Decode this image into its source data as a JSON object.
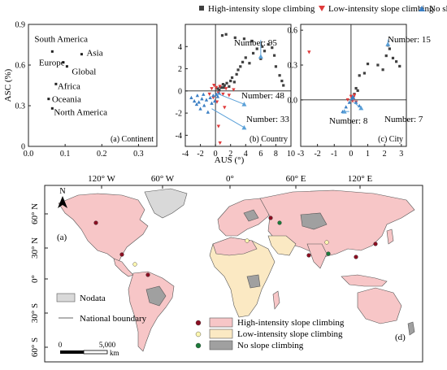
{
  "legend": {
    "high": "High-intensity slope climbing",
    "low": "Low-intensity slope climbing",
    "none": "No slope climbing"
  },
  "colors": {
    "high_marker": "#404040",
    "low_marker": "#e03a3a",
    "none_marker": "#3b7fc4",
    "arrow": "#5aa0d8",
    "map_high": "#f7c6c7",
    "map_low": "#fbe9c3",
    "map_none": "#a0a0a0",
    "map_nodata": "#d9d9d9",
    "ocean": "#ffffff",
    "dot_high": "#8b0f22",
    "dot_low": "#fff7b0",
    "dot_none": "#1c7a3a"
  },
  "y_label_shared": "ASC (%)",
  "x_label_shared": "AUS (°)",
  "chart_data": [
    {
      "type": "scatter",
      "panel_label": "(a) Continent",
      "xlim": [
        0,
        0.35
      ],
      "ylim": [
        0,
        0.9
      ],
      "x_ticks": [
        "0.0",
        "0.1",
        "0.2",
        "0.3"
      ],
      "x_tick_values": [
        0,
        0.1,
        0.2,
        0.3
      ],
      "y_ticks": [
        "0",
        "0.3",
        "0.6",
        "0.9"
      ],
      "y_tick_values": [
        0,
        0.3,
        0.6,
        0.9
      ],
      "points": [
        {
          "label": "South America",
          "x": 0.065,
          "y": 0.7
        },
        {
          "label": "Asia",
          "x": 0.145,
          "y": 0.68
        },
        {
          "label": "Europe",
          "x": 0.095,
          "y": 0.62
        },
        {
          "label": "Global",
          "x": 0.105,
          "y": 0.59
        },
        {
          "label": "Africa",
          "x": 0.075,
          "y": 0.46
        },
        {
          "label": "Oceania",
          "x": 0.055,
          "y": 0.35
        },
        {
          "label": "North America",
          "x": 0.065,
          "y": 0.28
        }
      ]
    },
    {
      "type": "scatter",
      "panel_label": "(b) Country",
      "xlim": [
        -4,
        10
      ],
      "ylim": [
        -5,
        6
      ],
      "x_ticks": [
        "-4",
        "-2",
        "0",
        "2",
        "4",
        "6",
        "8",
        "10"
      ],
      "x_tick_values": [
        -4,
        -2,
        0,
        2,
        4,
        6,
        8,
        10
      ],
      "y_ticks": [
        "-4",
        "-2",
        "0",
        "2",
        "4"
      ],
      "y_tick_values": [
        -4,
        -2,
        0,
        2,
        4
      ],
      "series": [
        {
          "name": "High-intensity slope climbing",
          "x": [
            0.3,
            0.6,
            0.8,
            1.0,
            1.2,
            1.5,
            1.8,
            2.0,
            2.2,
            2.5,
            2.8,
            3.0,
            3.3,
            3.6,
            4.0,
            4.5,
            5.0,
            5.5,
            6.0,
            6.5,
            7.0,
            7.5,
            8.0,
            8.5,
            9.0,
            0.9,
            1.4,
            2.6,
            3.8,
            4.8,
            6.2,
            7.8,
            8.8,
            0.5,
            1.1
          ],
          "y": [
            0.2,
            0.4,
            0.3,
            0.6,
            0.5,
            0.7,
            0.4,
            0.9,
            1.2,
            0.8,
            1.5,
            1.9,
            2.2,
            2.6,
            3.0,
            2.5,
            3.4,
            3.8,
            2.9,
            3.6,
            4.2,
            3.9,
            2.2,
            1.4,
            0.5,
            5.0,
            5.1,
            4.8,
            4.7,
            4.5,
            4.0,
            3.2,
            0.9,
            0.1,
            0.3
          ]
        },
        {
          "name": "Low-intensity slope climbing",
          "x": [
            -0.8,
            -0.5,
            -0.3,
            0.1,
            0.2,
            0.4,
            0.6,
            1.0,
            1.4,
            1.8,
            2.4,
            0.4,
            0.6,
            1.2,
            -0.2
          ],
          "y": [
            -0.3,
            0.2,
            -0.6,
            0.3,
            -1.0,
            -0.2,
            0.4,
            -0.3,
            0.2,
            -0.4,
            0.1,
            -3.2,
            -4.7,
            -1.5,
            0.5
          ]
        },
        {
          "name": "No slope climbing",
          "x": [
            -3.2,
            -2.8,
            -2.5,
            -2.2,
            -2.0,
            -1.8,
            -1.5,
            -1.2,
            -1.0,
            -0.7,
            -0.5,
            -0.3,
            -0.1,
            0.1,
            0.3,
            0.5,
            -1.6,
            -2.4,
            6.0
          ],
          "y": [
            -0.6,
            -0.9,
            -1.2,
            -1.0,
            -1.6,
            -0.7,
            -1.3,
            -0.8,
            -1.9,
            -0.6,
            -1.1,
            -0.4,
            -0.9,
            -0.3,
            -0.5,
            -0.2,
            -0.3,
            -0.4,
            3.1
          ]
        }
      ],
      "annotations": [
        {
          "text": "Number: 95",
          "x": 6.0,
          "y": 3.1
        },
        {
          "text": "Number: 48",
          "x": 3.8,
          "y": -1.2
        },
        {
          "text": "Number: 33",
          "x": 3.8,
          "y": -3.3
        }
      ]
    },
    {
      "type": "scatter",
      "panel_label": "(c) City",
      "xlim": [
        -3,
        3.3
      ],
      "ylim": [
        -0.4,
        0.65
      ],
      "x_ticks": [
        "-3",
        "-2",
        "-1",
        "0",
        "1",
        "2",
        "3"
      ],
      "x_tick_values": [
        -3,
        -2,
        -1,
        0,
        1,
        2,
        3
      ],
      "y_ticks": [
        "0.0",
        "0.3",
        "0.6"
      ],
      "y_tick_values": [
        0,
        0.3,
        0.6
      ],
      "series": [
        {
          "name": "High-intensity slope climbing",
          "x": [
            0.3,
            0.5,
            0.8,
            1.0,
            1.6,
            1.9,
            2.1,
            2.3,
            2.5,
            2.7,
            2.9,
            2.2,
            0.1,
            0.2,
            0.4
          ],
          "y": [
            0.1,
            0.21,
            0.23,
            0.31,
            0.3,
            0.26,
            0.38,
            0.44,
            0.36,
            0.33,
            0.29,
            0.47,
            0.02,
            0.05,
            0.08
          ]
        },
        {
          "name": "Low-intensity slope climbing",
          "x": [
            -2.5,
            -0.2,
            0.0,
            0.1,
            0.15,
            0.2,
            0.3
          ],
          "y": [
            0.41,
            0.0,
            0.03,
            -0.01,
            0.02,
            0.04,
            -0.02
          ]
        },
        {
          "name": "No slope climbing",
          "x": [
            -0.5,
            -0.3,
            -0.1,
            0.05,
            0.1,
            0.15,
            0.3,
            0.5
          ],
          "y": [
            -0.1,
            -0.06,
            -0.02,
            0.01,
            0.03,
            0.02,
            -0.02,
            -0.05
          ]
        }
      ],
      "annotations": [
        {
          "text": "Number: 15",
          "x": 2.2,
          "y": 0.48
        },
        {
          "text": "Number: 8",
          "x": -0.4,
          "y": -0.1
        },
        {
          "text": "Number: 7",
          "x": 0.6,
          "y": -0.07
        }
      ]
    }
  ],
  "map": {
    "panel_label": "(a)",
    "corner_label": "(d)",
    "north": "N",
    "lon_ticks": [
      "120° W",
      "60° W",
      "0°",
      "60° E",
      "120° E"
    ],
    "lat_ticks": [
      "60° N",
      "30° N",
      "0°",
      "30° S",
      "60° S"
    ],
    "nodata_label": "Nodata",
    "boundary_label": "National boundary",
    "scale_zero": "0",
    "scale_max": "5,000",
    "scale_unit": "km"
  }
}
